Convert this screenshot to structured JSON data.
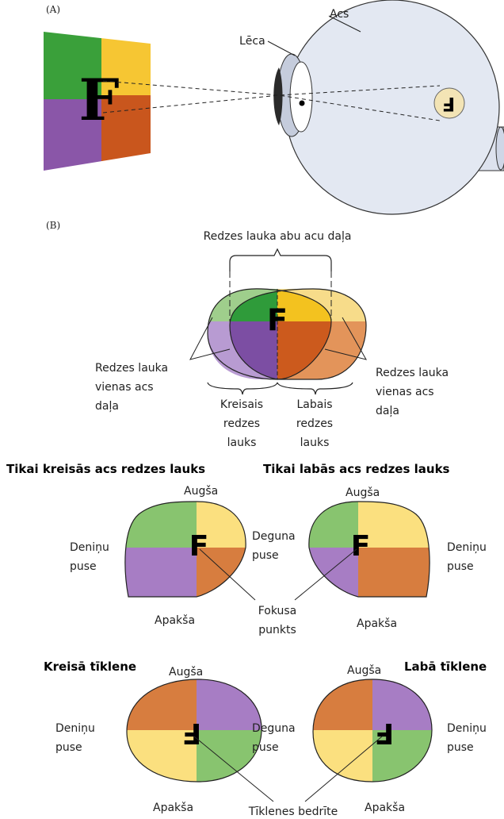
{
  "panel_a": {
    "label": "(A)",
    "eye": "Acs",
    "lens": "Lēca",
    "object_letter": "F",
    "image_letter": "F"
  },
  "panel_b": {
    "label": "(B)",
    "binocular": "Redzes lauka abu acu daļa",
    "letter": "F",
    "monocular_left": [
      "Redzes lauka",
      "vienas acs",
      "daļa"
    ],
    "monocular_right": [
      "Redzes lauka",
      "vienas acs",
      "daļa"
    ],
    "left_field": [
      "Kreisais",
      "redzes",
      "lauks"
    ],
    "right_field": [
      "Labais",
      "redzes",
      "lauks"
    ]
  },
  "visual_fields": {
    "left": {
      "title": "Tikai kreisās acs redzes lauks",
      "top": "Augša",
      "temporal": [
        "Deniņu",
        "puse"
      ],
      "nasal": [
        "Deguna",
        "puse"
      ],
      "bottom": "Apakša",
      "letter": "F"
    },
    "right": {
      "title": "Tikai labās acs redzes lauks",
      "top": "Augša",
      "temporal": [
        "Deniņu",
        "puse"
      ],
      "bottom": "Apakša",
      "letter": "F"
    },
    "focus": [
      "Fokusa",
      "punkts"
    ]
  },
  "retinas": {
    "left": {
      "title": "Kreisā tīklene",
      "top": "Augša",
      "temporal": [
        "Deniņu",
        "puse"
      ],
      "nasal": [
        "Deguna",
        "puse"
      ],
      "bottom": "Apakša",
      "letter": "F"
    },
    "right": {
      "title": "Labā tīklene",
      "top": "Augša",
      "temporal": [
        "Deniņu",
        "puse"
      ],
      "bottom": "Apakša",
      "letter": "F"
    },
    "fovea": "Tīklenes bedrīte"
  }
}
